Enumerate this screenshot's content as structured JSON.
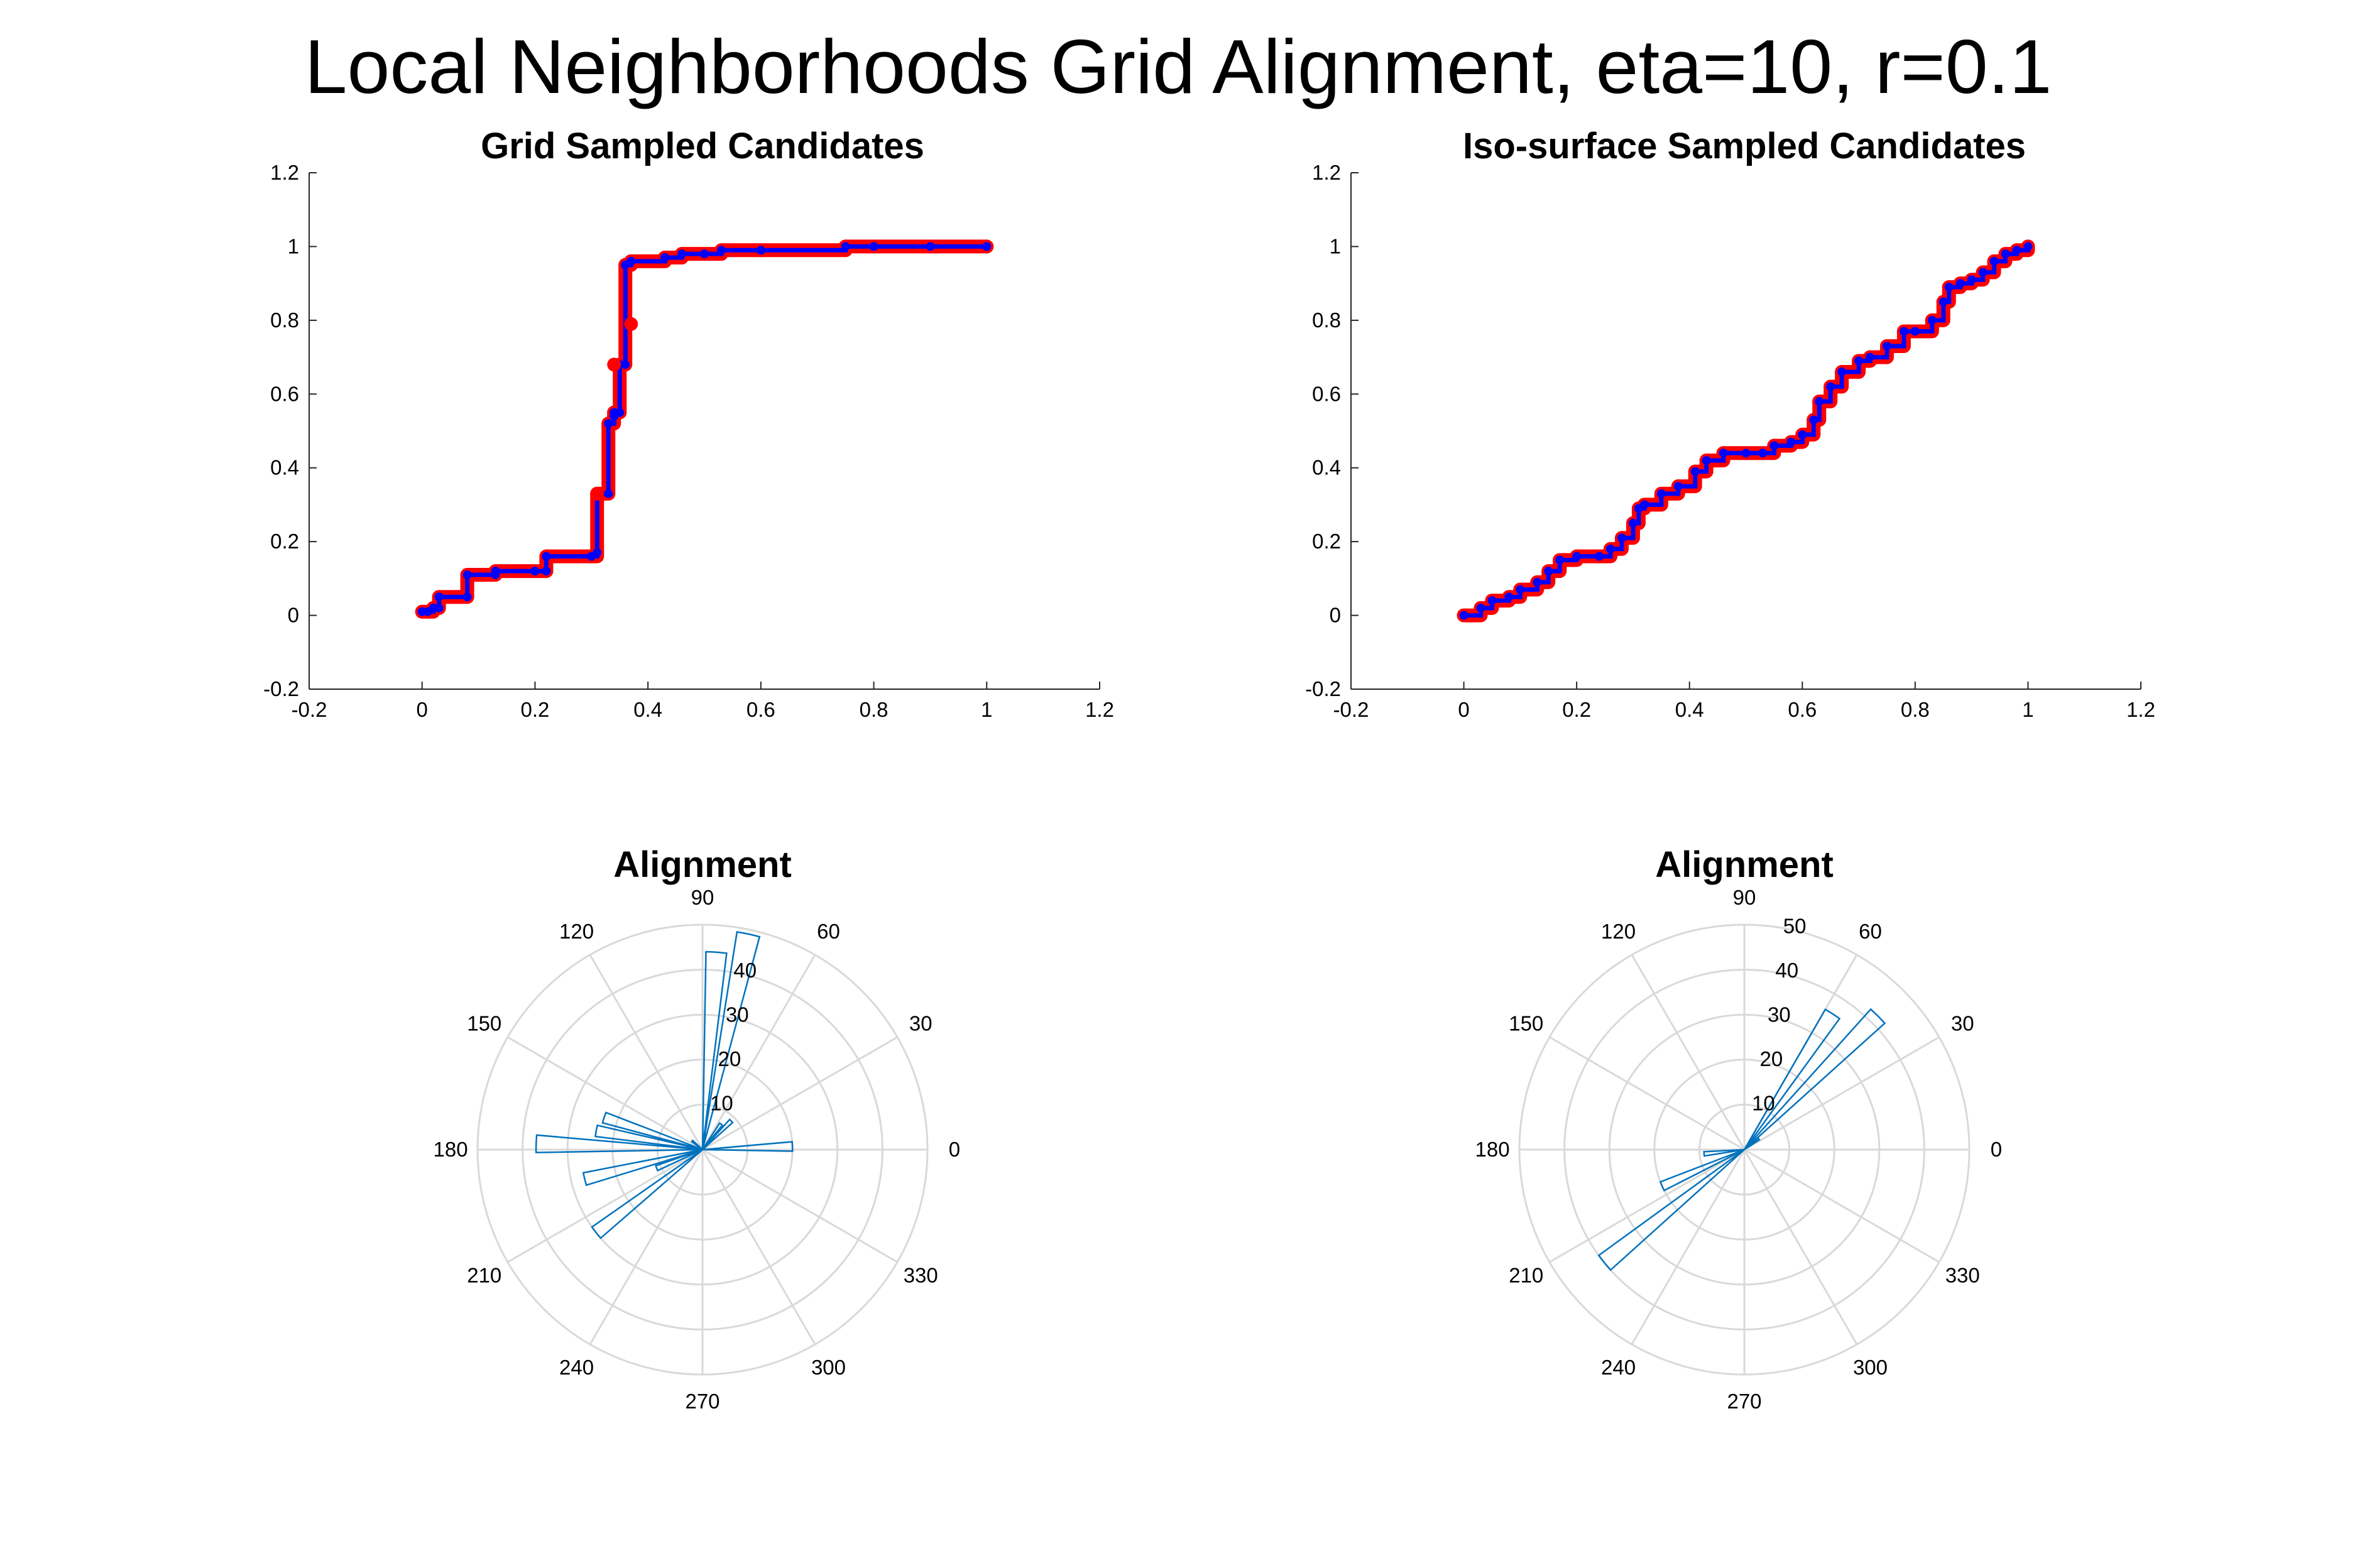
{
  "figure": {
    "title": "Local Neighborhoods Grid Alignment, eta=10, r=0.1"
  },
  "chart_data": [
    {
      "type": "line",
      "title": "Grid Sampled Candidates",
      "xlim": [
        -0.2,
        1.2
      ],
      "ylim": [
        -0.2,
        1.2
      ],
      "xticks": [
        "-0.2",
        "0",
        "0.2",
        "0.4",
        "0.6",
        "0.8",
        "1",
        "1.2"
      ],
      "yticks": [
        "-0.2",
        "0",
        "0.2",
        "0.4",
        "0.6",
        "0.8",
        "1",
        "1.2"
      ],
      "grid": false,
      "series": [
        {
          "marker_color": "#ff0000",
          "line_color": "#0000ff",
          "x": [
            0.0,
            0.01,
            0.02,
            0.02,
            0.03,
            0.03,
            0.08,
            0.08,
            0.13,
            0.13,
            0.2,
            0.22,
            0.22,
            0.3,
            0.31,
            0.31,
            0.33,
            0.33,
            0.34,
            0.34,
            0.35,
            0.35,
            0.36,
            0.36,
            0.37,
            0.37,
            0.43,
            0.46,
            0.5,
            0.53,
            0.6,
            0.75,
            0.8,
            0.9,
            1.0
          ],
          "y": [
            0.01,
            0.01,
            0.02,
            0.02,
            0.02,
            0.05,
            0.05,
            0.11,
            0.11,
            0.12,
            0.12,
            0.12,
            0.16,
            0.16,
            0.17,
            0.33,
            0.33,
            0.52,
            0.54,
            0.55,
            0.55,
            0.68,
            0.68,
            0.95,
            0.96,
            0.96,
            0.97,
            0.98,
            0.98,
            0.99,
            0.99,
            1.0,
            1.0,
            1.0,
            1.0
          ]
        }
      ],
      "outliers": [
        {
          "x": 0.37,
          "y": 0.79
        },
        {
          "x": 0.31,
          "y": 0.33
        },
        {
          "x": 0.34,
          "y": 0.68
        }
      ]
    },
    {
      "type": "line",
      "title": "Iso-surface Sampled Candidates",
      "xlim": [
        -0.2,
        1.2
      ],
      "ylim": [
        -0.2,
        1.2
      ],
      "xticks": [
        "-0.2",
        "0",
        "0.2",
        "0.4",
        "0.6",
        "0.8",
        "1",
        "1.2"
      ],
      "yticks": [
        "-0.2",
        "0",
        "0.2",
        "0.4",
        "0.6",
        "0.8",
        "1",
        "1.2"
      ],
      "grid": false,
      "series": [
        {
          "marker_color": "#ff0000",
          "line_color": "#0000ff",
          "x": [
            0.0,
            0.03,
            0.05,
            0.08,
            0.1,
            0.13,
            0.15,
            0.17,
            0.2,
            0.24,
            0.26,
            0.28,
            0.3,
            0.31,
            0.32,
            0.35,
            0.38,
            0.41,
            0.43,
            0.46,
            0.5,
            0.53,
            0.55,
            0.58,
            0.6,
            0.62,
            0.63,
            0.65,
            0.67,
            0.7,
            0.72,
            0.75,
            0.78,
            0.8,
            0.83,
            0.85,
            0.86,
            0.88,
            0.9,
            0.92,
            0.94,
            0.96,
            0.98,
            1.0
          ],
          "y": [
            0.0,
            0.02,
            0.04,
            0.05,
            0.07,
            0.09,
            0.12,
            0.15,
            0.16,
            0.16,
            0.18,
            0.21,
            0.25,
            0.29,
            0.3,
            0.33,
            0.35,
            0.39,
            0.42,
            0.44,
            0.44,
            0.44,
            0.46,
            0.47,
            0.49,
            0.53,
            0.58,
            0.62,
            0.66,
            0.69,
            0.7,
            0.73,
            0.77,
            0.77,
            0.8,
            0.85,
            0.89,
            0.9,
            0.91,
            0.93,
            0.96,
            0.98,
            0.99,
            1.0
          ]
        }
      ]
    },
    {
      "type": "polar-histogram",
      "title": "Alignment",
      "r_max": 50,
      "r_ticks": [
        "10",
        "20",
        "30",
        "40"
      ],
      "angle_ticks": [
        "0",
        "30",
        "60",
        "90",
        "120",
        "150",
        "180",
        "210",
        "240",
        "270",
        "300",
        "330"
      ],
      "bin_width_deg": 6,
      "bar_color": "#0072bd",
      "bins": [
        {
          "center": 86,
          "value": 44
        },
        {
          "center": 78,
          "value": 49
        },
        {
          "center": 45,
          "value": 9
        },
        {
          "center": 54,
          "value": 7
        },
        {
          "center": 2,
          "value": 20
        },
        {
          "center": 178,
          "value": 37
        },
        {
          "center": 170,
          "value": 24
        },
        {
          "center": 162,
          "value": 23
        },
        {
          "center": 218,
          "value": 30
        },
        {
          "center": 194,
          "value": 27
        },
        {
          "center": 202,
          "value": 11
        },
        {
          "center": 140,
          "value": 3
        }
      ]
    },
    {
      "type": "polar-histogram",
      "title": "Alignment",
      "r_max": 50,
      "r_ticks": [
        "10",
        "20",
        "30",
        "40",
        "50"
      ],
      "angle_ticks": [
        "0",
        "30",
        "60",
        "90",
        "120",
        "150",
        "180",
        "210",
        "240",
        "270",
        "300",
        "330"
      ],
      "bin_width_deg": 6,
      "bar_color": "#0072bd",
      "bins": [
        {
          "center": 57,
          "value": 36
        },
        {
          "center": 45,
          "value": 42
        },
        {
          "center": 219,
          "value": 40
        },
        {
          "center": 204,
          "value": 20
        },
        {
          "center": 186,
          "value": 9
        },
        {
          "center": 36,
          "value": 4
        }
      ]
    }
  ]
}
